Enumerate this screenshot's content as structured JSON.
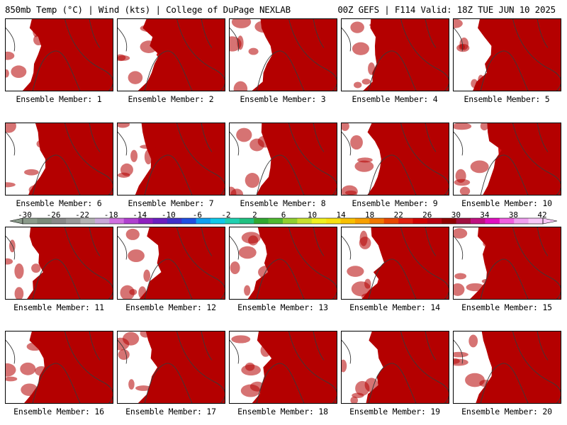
{
  "header": {
    "left": "850mb Temp (°C) | Wind (kts) | College of DuPage NEXLAB",
    "right": "00Z GEFS | F114 Valid: 18Z TUE JUN 10 2025"
  },
  "panels": [
    {
      "label": "Ensemble Member: 1",
      "warmth": 0.45
    },
    {
      "label": "Ensemble Member: 2",
      "warmth": 0.55
    },
    {
      "label": "Ensemble Member: 3",
      "warmth": 0.6
    },
    {
      "label": "Ensemble Member: 4",
      "warmth": 0.55
    },
    {
      "label": "Ensemble Member: 5",
      "warmth": 0.45
    },
    {
      "label": "Ensemble Member: 6",
      "warmth": 0.55
    },
    {
      "label": "Ensemble Member: 7",
      "warmth": 0.35
    },
    {
      "label": "Ensemble Member: 8",
      "warmth": 0.65
    },
    {
      "label": "Ensemble Member: 9",
      "warmth": 0.6
    },
    {
      "label": "Ensemble Member: 10",
      "warmth": 0.7
    },
    {
      "label": "Ensemble Member: 11",
      "warmth": 0.4
    },
    {
      "label": "Ensemble Member: 12",
      "warmth": 0.65
    },
    {
      "label": "Ensemble Member: 13",
      "warmth": 0.5
    },
    {
      "label": "Ensemble Member: 14",
      "warmth": 0.55
    },
    {
      "label": "Ensemble Member: 15",
      "warmth": 0.4
    },
    {
      "label": "Ensemble Member: 16",
      "warmth": 0.45
    },
    {
      "label": "Ensemble Member: 17",
      "warmth": 0.5
    },
    {
      "label": "Ensemble Member: 18",
      "warmth": 0.55
    },
    {
      "label": "Ensemble Member: 19",
      "warmth": 0.6
    },
    {
      "label": "Ensemble Member: 20",
      "warmth": 0.5
    }
  ],
  "colorbar": {
    "labels": [
      "-30",
      "-26",
      "-22",
      "-18",
      "-14",
      "-10",
      "-6",
      "-2",
      "2",
      "6",
      "10",
      "14",
      "18",
      "22",
      "26",
      "30",
      "34",
      "38",
      "42"
    ],
    "colors": [
      "#8a9a8a",
      "#7a8a7a",
      "#888888",
      "#999999",
      "#b3b3b3",
      "#c8a8d8",
      "#d070e0",
      "#b040d0",
      "#9020c0",
      "#6a20c0",
      "#4030c8",
      "#2050e0",
      "#10a0f0",
      "#10c8e8",
      "#20d0b0",
      "#20c080",
      "#30a830",
      "#50b830",
      "#90d030",
      "#c8e030",
      "#f0f020",
      "#f8e010",
      "#f8c000",
      "#f8a000",
      "#f07800",
      "#e84800",
      "#e02010",
      "#d00000",
      "#b80010",
      "#900000",
      "#a01040",
      "#c01080",
      "#e010c0",
      "#f060e0",
      "#f0a0f0",
      "#f8c8f8"
    ]
  },
  "palette": [
    "#2aa11c",
    "#5ab62a",
    "#8ccd30",
    "#b5dc32",
    "#d8ea30",
    "#f3f320",
    "#f8dc10",
    "#f8bc00",
    "#f59a00",
    "#ee7800",
    "#e85400",
    "#e02d10",
    "#d01010",
    "#b40000"
  ]
}
